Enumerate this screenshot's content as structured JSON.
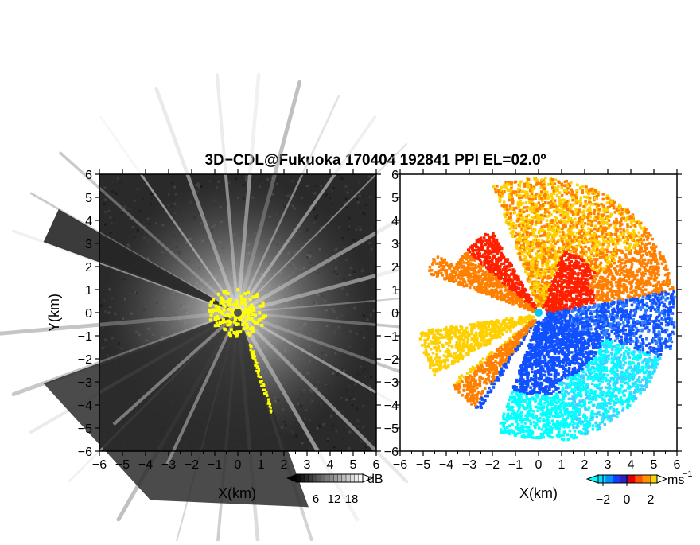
{
  "title": "3D−CDL@Fukuoka 170404 192841 PPI EL=02.0º",
  "chart_data": [
    {
      "type": "heatmap",
      "panel": "reflectivity",
      "xlabel": "X(km)",
      "ylabel": "Y(km)",
      "xlim": [
        -6,
        6
      ],
      "ylim": [
        -6,
        6
      ],
      "x_ticks": [
        -6,
        -5,
        -4,
        -3,
        -2,
        -1,
        0,
        1,
        2,
        3,
        4,
        5,
        6
      ],
      "y_ticks": [
        6,
        5,
        4,
        3,
        2,
        1,
        0,
        -1,
        -2,
        -3,
        -4,
        -5,
        -6
      ],
      "x_tick_labels": [
        "−6",
        "−5",
        "−4",
        "−3",
        "−2",
        "−1",
        "0",
        "1",
        "2",
        "3",
        "4",
        "5",
        "6"
      ],
      "y_tick_labels": [
        "6",
        "5",
        "4",
        "3",
        "2",
        "1",
        "0",
        "−1",
        "−2",
        "−3",
        "−4",
        "−5",
        "−6"
      ],
      "colormap": "grayscale",
      "colorbar": {
        "unit": "dB",
        "ticks": [
          "6",
          "12",
          "18"
        ],
        "range": [
          0,
          24
        ]
      },
      "colors": {
        "background": "#2a2a2a",
        "beam": "#d8d8d8",
        "near_range": "#ffff00",
        "radar_site": "#555555"
      },
      "radar_site": {
        "x": 0,
        "y": 0
      },
      "beams_deg": [
        5,
        15,
        25,
        35,
        45,
        60,
        75,
        85,
        95,
        110,
        120,
        135,
        150,
        162,
        175,
        185,
        195,
        210,
        225,
        240,
        250,
        265,
        290,
        300,
        312,
        325,
        340,
        355
      ],
      "sector_deg": [
        160,
        250
      ]
    },
    {
      "type": "heatmap",
      "panel": "doppler_velocity",
      "xlabel": "X(km)",
      "xlim": [
        -6,
        6
      ],
      "ylim": [
        -6,
        6
      ],
      "x_ticks": [
        -6,
        -5,
        -4,
        -3,
        -2,
        -1,
        0,
        1,
        2,
        3,
        4,
        5,
        6
      ],
      "y_ticks": [
        6,
        5,
        4,
        3,
        2,
        1,
        0,
        -1,
        -2,
        -3,
        -4,
        -5,
        -6
      ],
      "x_tick_labels": [
        "−6",
        "−5",
        "−4",
        "−3",
        "−2",
        "−1",
        "0",
        "1",
        "2",
        "3",
        "4",
        "5",
        "6"
      ],
      "y_tick_labels": [
        "6",
        "5",
        "4",
        "3",
        "2",
        "1",
        "0",
        "−1",
        "−2",
        "−3",
        "−4",
        "−5",
        "−6"
      ],
      "colormap": "cyan-blue-red-yellow",
      "colorbar": {
        "unit": "ms",
        "unit_exponent": "−1",
        "ticks": [
          "−2",
          "0",
          "2"
        ],
        "range": [
          -3,
          3
        ]
      },
      "colors": {
        "cyan": "#00ffff",
        "blue": "#1050ff",
        "red": "#ff2000",
        "orange": "#ff8000",
        "yellow": "#ffd000",
        "radar_site": "#00ccee"
      },
      "radar_site": {
        "x": 0,
        "y": 0
      }
    }
  ]
}
